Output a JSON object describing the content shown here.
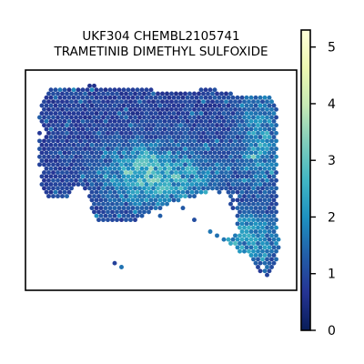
{
  "chart_data": {
    "type": "scatter",
    "title_line1": "UKF304 CHEMBL2105741",
    "title_line2": "TRAMETINIB DIMETHYL SULFOXIDE",
    "xlabel": "",
    "ylabel": "",
    "axes_ticks_visible": false,
    "grid": false,
    "colorbar": {
      "colormap": "YlGnBu",
      "vmin": 0,
      "vmax": 5.3,
      "ticks": [
        0,
        1,
        2,
        3,
        4,
        5
      ],
      "tick_labels": [
        "0",
        "1",
        "2",
        "3",
        "4",
        "5"
      ],
      "placement": "right"
    },
    "color_stops": [
      "#081d58",
      "#253494",
      "#225ea8",
      "#1d91c0",
      "#41b6c4",
      "#7fcdbb",
      "#c7e9b4",
      "#edf8b1",
      "#ffffd9"
    ]
  }
}
